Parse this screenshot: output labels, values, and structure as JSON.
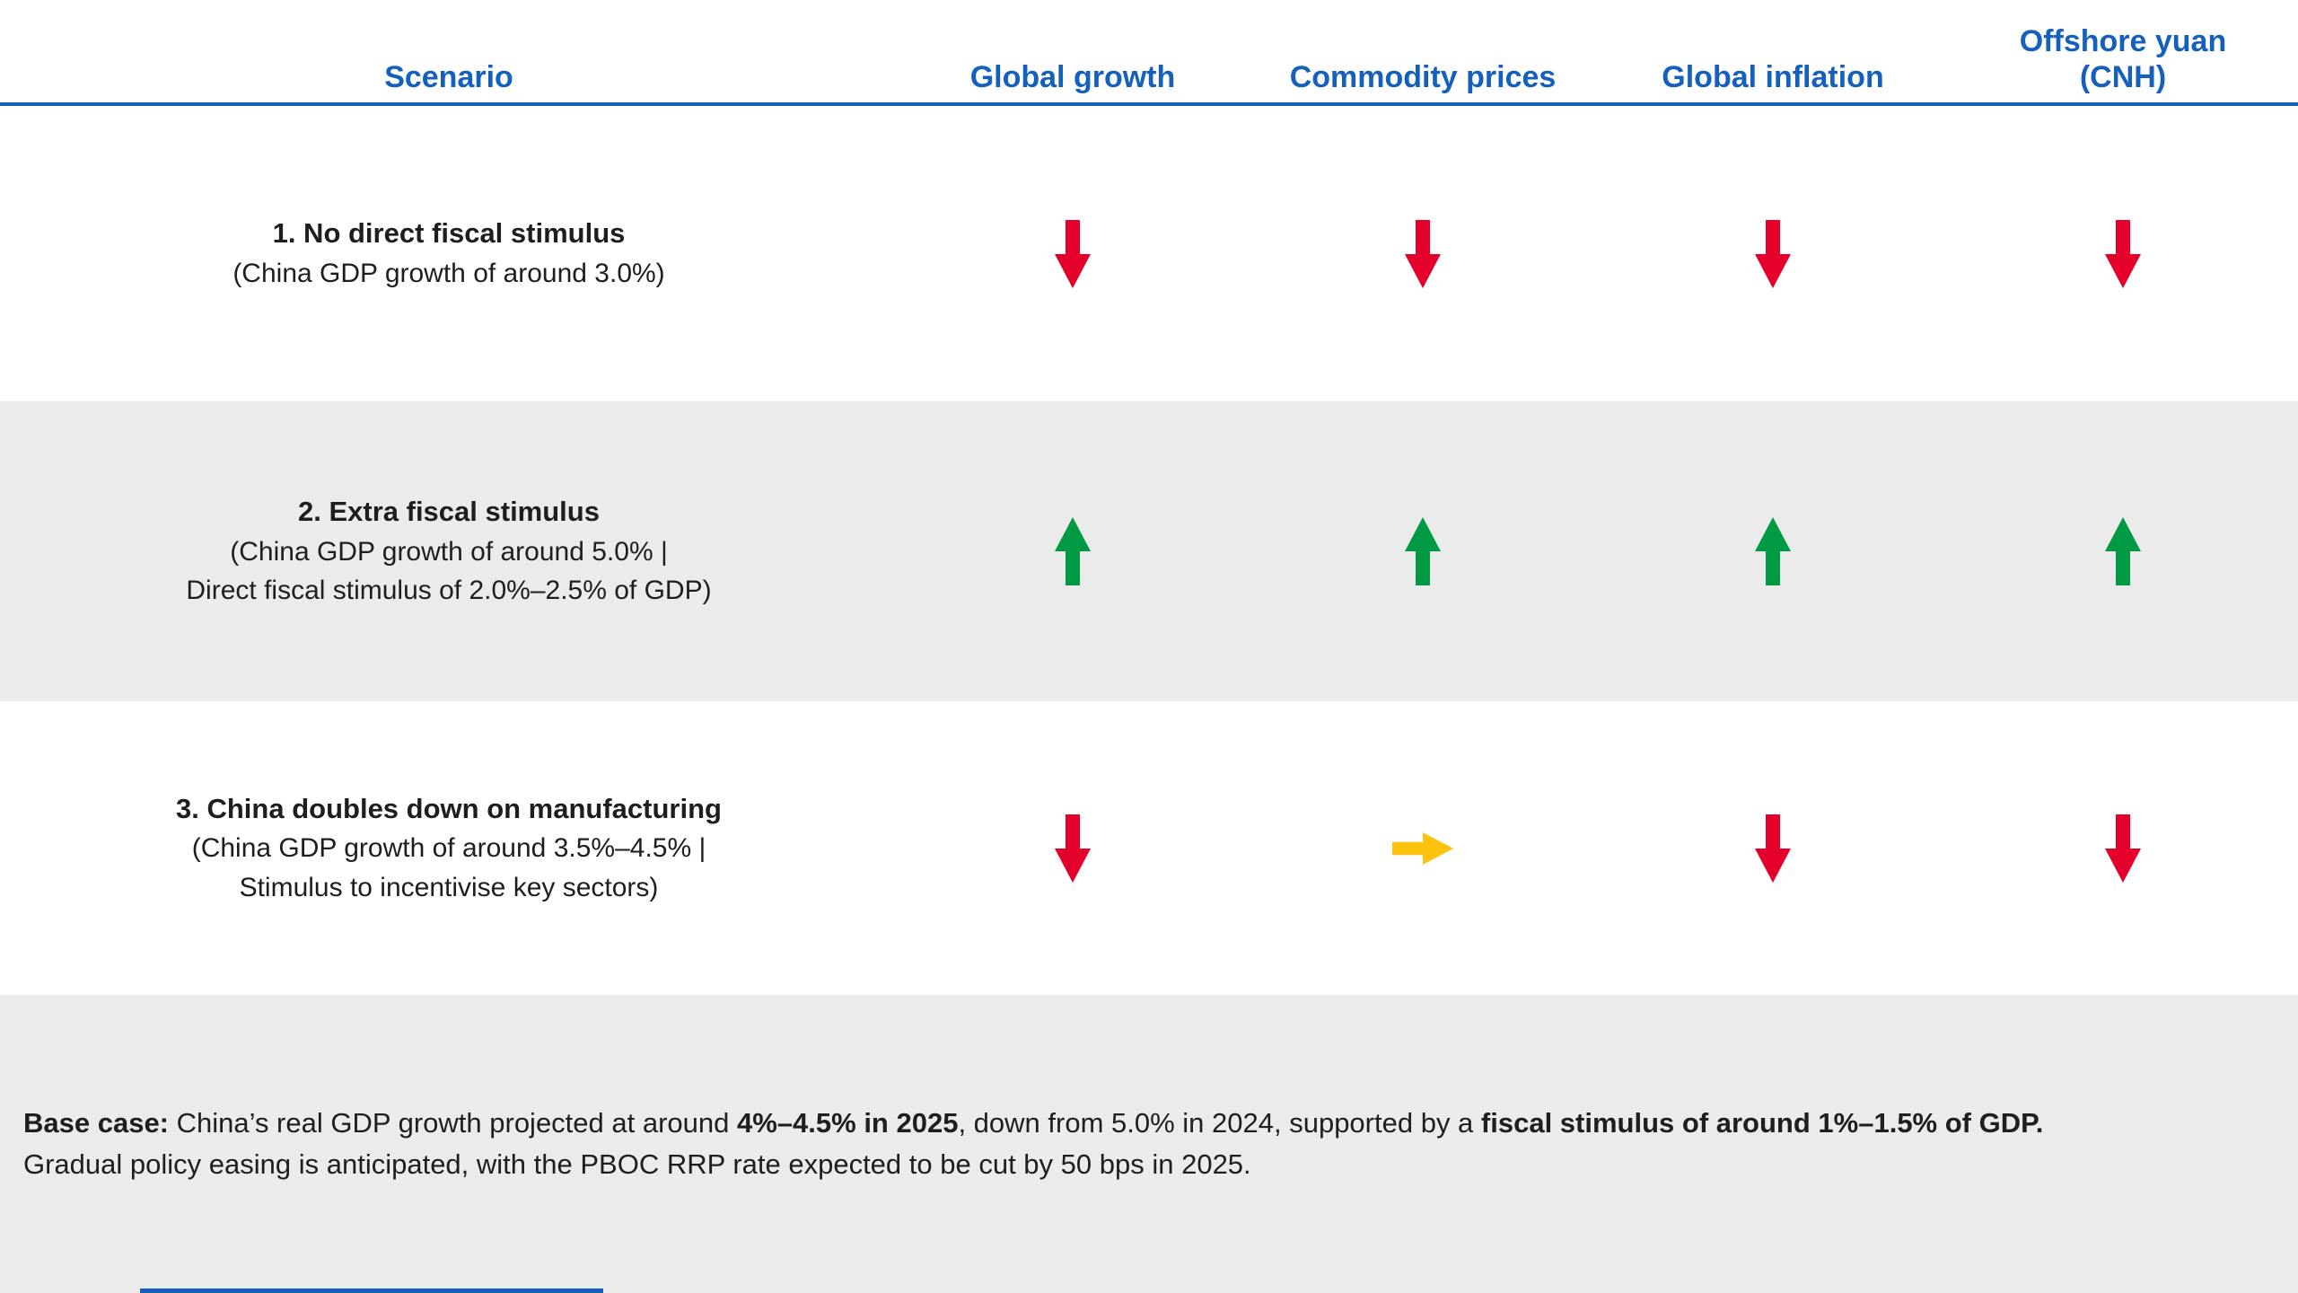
{
  "chart_data": {
    "type": "table",
    "columns": [
      "Scenario",
      "Global growth",
      "Commodity prices",
      "Global inflation",
      "Offshore yuan\n(CNH)"
    ],
    "rows": [
      {
        "title": "1. No direct fiscal stimulus",
        "detail": "(China GDP growth of around 3.0%)",
        "arrows": [
          "down",
          "down",
          "down",
          "down"
        ]
      },
      {
        "title": "2. Extra fiscal stimulus",
        "detail": "(China GDP growth of around 5.0% |\nDirect fiscal stimulus of 2.0%–2.5% of GDP)",
        "arrows": [
          "up",
          "up",
          "up",
          "up"
        ]
      },
      {
        "title": "3. China doubles down on manufacturing",
        "detail": "(China GDP growth of around 3.5%–4.5% |\nStimulus to incentivise key sectors)",
        "arrows": [
          "down",
          "right",
          "down",
          "down"
        ]
      }
    ],
    "arrow_meaning": {
      "down": "decrease (red)",
      "up": "increase (green)",
      "right": "neutral / flat (yellow)"
    }
  },
  "footer": {
    "lines": [
      [
        {
          "text": "Base case: ",
          "bold": true
        },
        {
          "text": "China’s real GDP growth projected at around ",
          "bold": false
        },
        {
          "text": "4%–4.5% in 2025",
          "bold": true
        },
        {
          "text": ", down from 5.0% in 2024, supported by a ",
          "bold": false
        },
        {
          "text": "fiscal stimulus of around 1%–1.5% of GDP.",
          "bold": true
        }
      ],
      [
        {
          "text": "Gradual policy easing is anticipated, with the PBOC RRP rate expected to be cut by 50 bps in 2025.",
          "bold": false
        }
      ]
    ]
  },
  "colors": {
    "header_text": "#1560BD",
    "divider": "#1560BD",
    "arrow_down": "#E4002B",
    "arrow_up": "#009A44",
    "arrow_right": "#FFC20E",
    "row_alt_background": "#EBEBEB",
    "body_text": "#1E1E1E"
  }
}
